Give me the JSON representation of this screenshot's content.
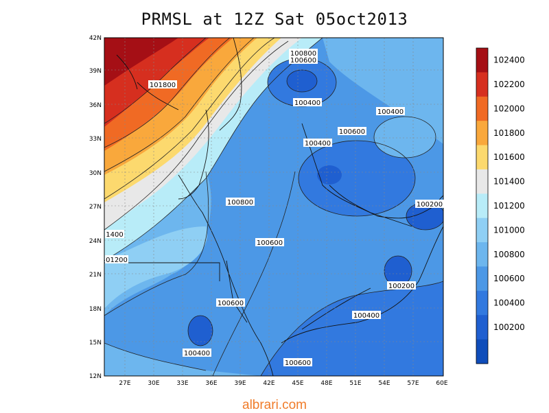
{
  "title": "PRMSL at 12Z Sat 05oct2013",
  "credit": "albrari.com",
  "lat_labels": [
    "42N",
    "39N",
    "36N",
    "33N",
    "30N",
    "27N",
    "24N",
    "21N",
    "18N",
    "15N",
    "12N"
  ],
  "lon_labels": [
    "27E",
    "30E",
    "33E",
    "36E",
    "39E",
    "42E",
    "45E",
    "48E",
    "51E",
    "54E",
    "57E",
    "60E"
  ],
  "colorbar": {
    "labels": [
      "102400",
      "102200",
      "102000",
      "101800",
      "101600",
      "101400",
      "101200",
      "101000",
      "100800",
      "100600",
      "100400",
      "100200"
    ],
    "colors": [
      "#a50f15",
      "#d62f1f",
      "#f06a24",
      "#f9a83c",
      "#fcd96e",
      "#e8e8e8",
      "#b8ecf8",
      "#8fcff4",
      "#6db6ee",
      "#4c98e6",
      "#3279df",
      "#1f5fd0",
      "#0f4dba"
    ]
  },
  "contour_labels": [
    {
      "text": "101800"
    },
    {
      "text": "100800"
    },
    {
      "text": "100600"
    },
    {
      "text": "100400"
    },
    {
      "text": "100400"
    },
    {
      "text": "100600"
    },
    {
      "text": "100400"
    },
    {
      "text": "100800"
    },
    {
      "text": "100600"
    },
    {
      "text": "100200"
    },
    {
      "text": "1400"
    },
    {
      "text": "01200"
    },
    {
      "text": "100200"
    },
    {
      "text": "100600"
    },
    {
      "text": "100400"
    },
    {
      "text": "100400"
    },
    {
      "text": "100600"
    }
  ]
}
